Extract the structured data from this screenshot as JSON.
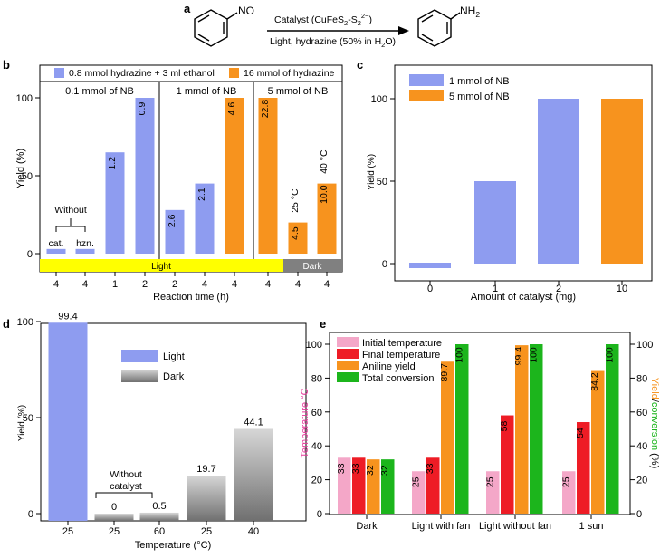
{
  "scheme": {
    "label": "a",
    "reactant_group": "NO",
    "product_group": "NH",
    "product_sub": "2",
    "arrow_top": "Catalyst (CuFeS",
    "arrow_top_sub": "2",
    "arrow_top_mid": "-S",
    "arrow_top_sub2": "2",
    "arrow_top_sup": "2−",
    "arrow_top_end": ")",
    "arrow_bottom": "Light, hydrazine (50% in H",
    "arrow_bottom_sub": "2",
    "arrow_bottom_end": "O)"
  },
  "chart_data": [
    {
      "panel": "b",
      "type": "bar",
      "xlabel": "Reaction time (h)",
      "ylabel": "Yield (%)",
      "ylim": [
        -8,
        112
      ],
      "yticks": [
        "0",
        "50",
        "100"
      ],
      "legend": [
        {
          "name": "0.8 mmol hydrazine + 3 ml ethanol",
          "color": "#8E9CF0"
        },
        {
          "name": "16 mmol of hydrazine",
          "color": "#F7931E"
        }
      ],
      "groups": [
        "0.1 mmol of NB",
        "1 mmol of NB",
        "5 mmol of NB"
      ],
      "categories": [
        "4",
        "4",
        "1",
        "2",
        "2",
        "4",
        "4",
        "4",
        "4",
        "4"
      ],
      "values": [
        3,
        3,
        65,
        100,
        28,
        45,
        100,
        100,
        20,
        45
      ],
      "series_index": [
        0,
        0,
        0,
        0,
        0,
        0,
        1,
        1,
        1,
        1
      ],
      "bar_labels": [
        "",
        "",
        "1.2",
        "0.9",
        "2.6",
        "2.1",
        "4.6",
        "22.8",
        "4.5",
        "10.0"
      ],
      "top_labels": [
        "",
        "",
        "",
        "",
        "",
        "",
        "",
        "",
        "25 °C",
        "40 °C"
      ],
      "without_label": "Without",
      "without_items": [
        "cat.",
        "hzn."
      ],
      "light_label": "Light",
      "dark_label": "Dark",
      "light_color": "#FFFF00",
      "dark_color": "#808080"
    },
    {
      "panel": "c",
      "type": "bar",
      "xlabel": "Amount of catalyst (mg)",
      "ylabel": "Yield (%)",
      "ylim": [
        -8,
        115
      ],
      "yticks": [
        "0",
        "50",
        "100"
      ],
      "categories": [
        "0",
        "1",
        "2",
        "10"
      ],
      "values": [
        0,
        50,
        100,
        100
      ],
      "series_index": [
        0,
        0,
        0,
        1
      ],
      "legend": [
        {
          "name": "1 mmol of NB",
          "color": "#8E9CF0"
        },
        {
          "name": "5 mmol of NB",
          "color": "#F7931E"
        }
      ]
    },
    {
      "panel": "d",
      "type": "bar",
      "xlabel": "Temperature (°C)",
      "ylabel": "Yield (%)",
      "ylim": [
        -8,
        105
      ],
      "yticks": [
        "0",
        "50",
        "100"
      ],
      "categories": [
        "25",
        "25",
        "60",
        "25",
        "40"
      ],
      "values": [
        99.4,
        0,
        0.5,
        19.7,
        44.1
      ],
      "display_values": [
        "99.4",
        "0",
        "0.5",
        "19.7",
        "44.1"
      ],
      "conditions": [
        "Light",
        "Dark",
        "Dark",
        "Dark",
        "Dark"
      ],
      "legend": [
        {
          "name": "Light",
          "color": "#8E9CF0"
        },
        {
          "name": "Dark",
          "color": "#9A9A9A"
        }
      ],
      "without_catalyst": [
        "Without",
        "catalyst"
      ]
    },
    {
      "panel": "e",
      "type": "bar",
      "categories": [
        "Dark",
        "Light with fan",
        "Light without fan",
        "1 sun"
      ],
      "ylabel_left": "Temperature °C",
      "ylabel_right_parts": [
        "Yield",
        "/",
        "conversion",
        " (%)"
      ],
      "ylim": [
        0,
        100
      ],
      "yticks": [
        "0",
        "20",
        "40",
        "60",
        "80",
        "100"
      ],
      "series": [
        {
          "name": "Initial temperature",
          "color": "#F4A7C8",
          "values": [
            33,
            25,
            25,
            25
          ],
          "labels": [
            "33",
            "25",
            "25",
            "25"
          ]
        },
        {
          "name": "Final temperature",
          "color": "#EE1C25",
          "values": [
            33,
            33,
            58,
            54
          ],
          "labels": [
            "33",
            "33",
            "58",
            "54"
          ]
        },
        {
          "name": "Aniline yield",
          "color": "#F7931E",
          "values": [
            32,
            89.7,
            99.4,
            84.2
          ],
          "labels": [
            "32",
            "89.7",
            "99.4",
            "84.2"
          ]
        },
        {
          "name": "Total conversion",
          "color": "#1CB51C",
          "values": [
            32,
            100,
            100,
            100
          ],
          "labels": [
            "32",
            "100",
            "100",
            "100"
          ]
        }
      ],
      "left_label_color": "#E6399B",
      "right_label_colors": [
        "#F7931E",
        "#000000",
        "#1CB51C",
        "#000000"
      ]
    }
  ]
}
